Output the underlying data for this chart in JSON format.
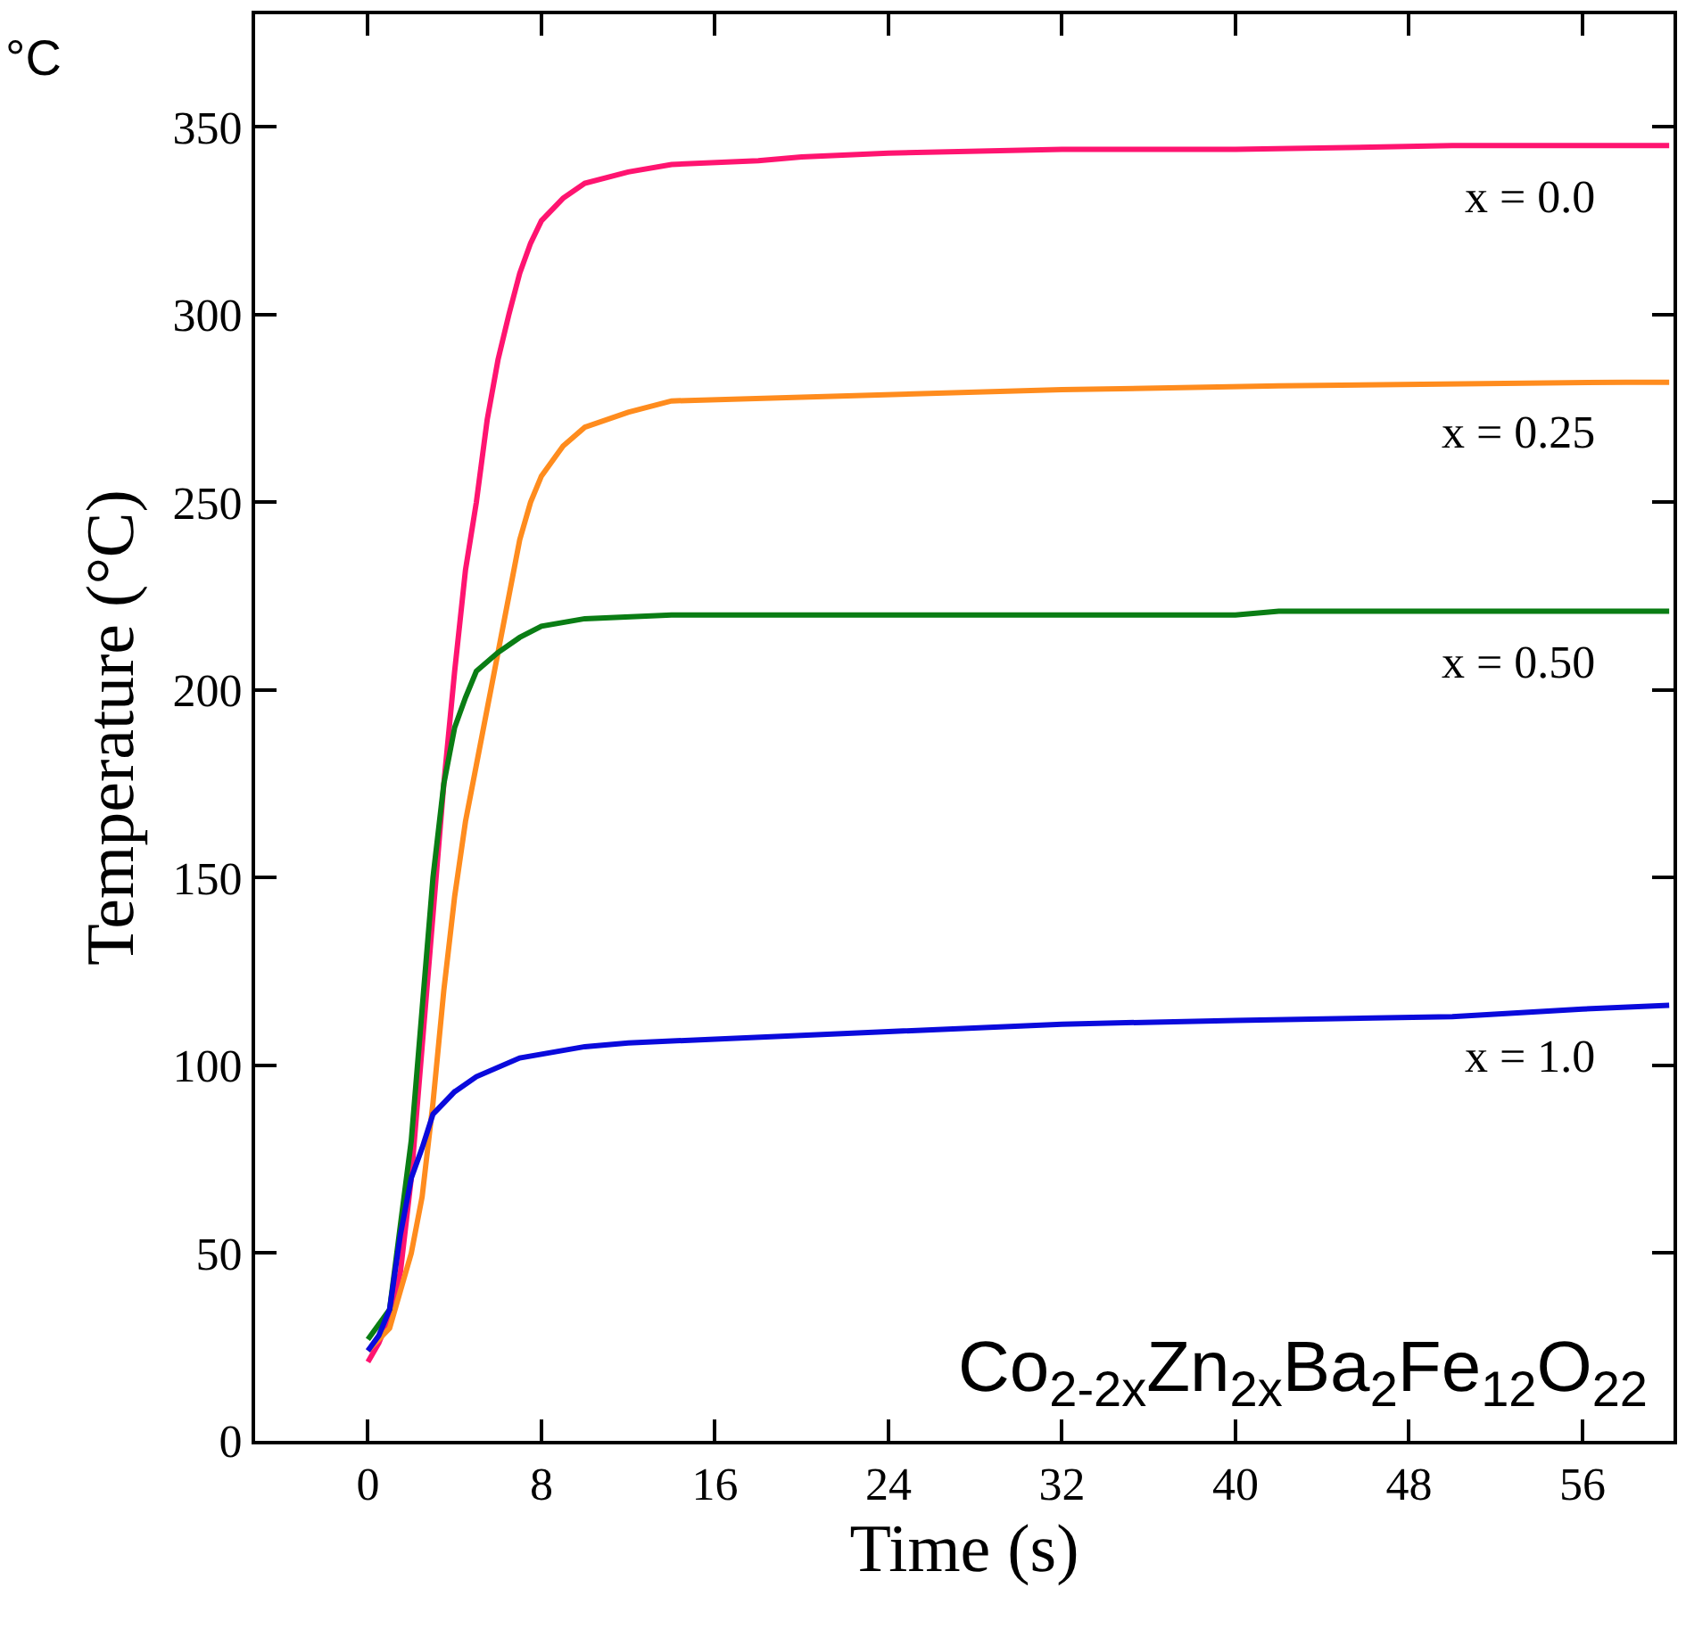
{
  "chart_data": {
    "type": "line",
    "xlabel": "Time (s)",
    "ylabel": "Temperature (°C)",
    "xlim": [
      -5.2,
      60.2
    ],
    "xticks": [
      0,
      8,
      16,
      24,
      32,
      40,
      48,
      56
    ],
    "ylim": [
      0,
      380
    ],
    "yticks": [
      0,
      50,
      100,
      150,
      200,
      250,
      300,
      350
    ],
    "legend": false,
    "marker": "none",
    "line_style": "solid",
    "annotations": [
      "Co$_{2-2x}$Zn$_{2x}$Ba$_{2}$Fe$_{12}$O$_{22}$",
      "°C"
    ],
    "series": [
      {
        "name": "x = 0.0",
        "color": "#ff1470",
        "x": [
          0,
          0.5,
          1,
          1.5,
          2,
          2.5,
          3,
          3.5,
          4,
          4.5,
          5,
          5.5,
          6,
          6.5,
          7,
          7.5,
          8,
          9,
          10,
          12,
          14,
          18,
          20,
          24,
          32,
          40,
          50,
          60
        ],
        "values": [
          21,
          26,
          33,
          45,
          70,
          105,
          140,
          175,
          205,
          232,
          250,
          272,
          288,
          300,
          311,
          319,
          325,
          331,
          335,
          338,
          340,
          341,
          342,
          343,
          344,
          344,
          345,
          345
        ]
      },
      {
        "name": "x = 0.25",
        "color": "#ff8c1e",
        "x": [
          0,
          1,
          2,
          2.5,
          3,
          3.5,
          4,
          4.5,
          5,
          5.5,
          6,
          6.5,
          7,
          7.5,
          8,
          9,
          10,
          12,
          14,
          20,
          32,
          42,
          58,
          60
        ],
        "values": [
          24,
          30,
          50,
          65,
          90,
          120,
          145,
          165,
          180,
          195,
          210,
          225,
          240,
          250,
          257,
          265,
          270,
          274,
          277,
          278,
          280,
          281,
          282,
          282
        ]
      },
      {
        "name": "x = 0.50",
        "color": "#0a7d14",
        "x": [
          0,
          1,
          2,
          2.5,
          3,
          3.5,
          4,
          4.5,
          5,
          6,
          7,
          8,
          10,
          14,
          40,
          42,
          60
        ],
        "values": [
          27,
          35,
          80,
          115,
          150,
          175,
          190,
          198,
          205,
          210,
          214,
          217,
          219,
          220,
          220,
          221,
          221
        ]
      },
      {
        "name": "x = 1.0",
        "color": "#0a0adc",
        "x": [
          0,
          0.5,
          1,
          1.5,
          2,
          2.5,
          3,
          4,
          5,
          7,
          10,
          12,
          16,
          20,
          24,
          32,
          40,
          50,
          56,
          60
        ],
        "values": [
          24,
          28,
          35,
          55,
          70,
          78,
          87,
          93,
          97,
          102,
          105,
          106,
          107,
          108,
          109,
          111,
          112,
          113,
          115,
          116
        ]
      }
    ]
  }
}
